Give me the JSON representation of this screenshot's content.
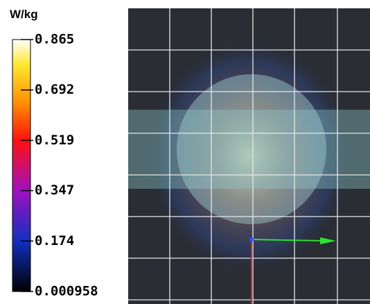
{
  "colorbar": {
    "unit": "W/kg",
    "range": [
      0.000958,
      0.865
    ],
    "ticks": [
      0.865,
      0.692,
      0.519,
      0.347,
      0.174,
      0.000958
    ]
  }
}
